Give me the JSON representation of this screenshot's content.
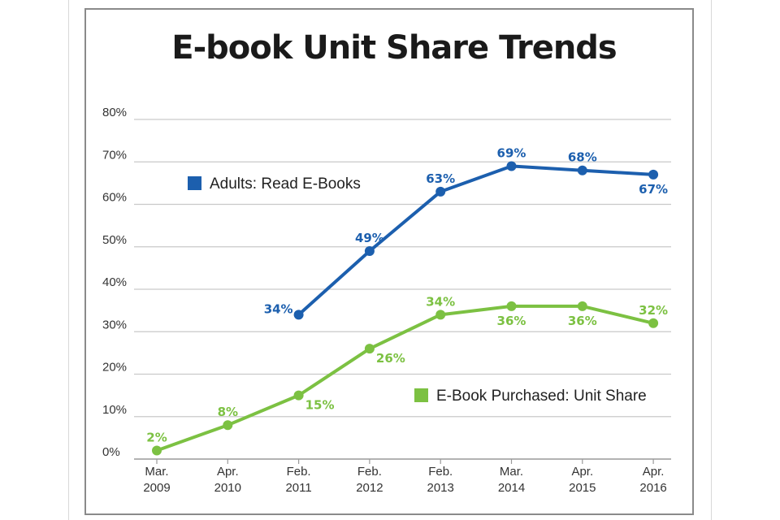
{
  "chart_data": {
    "type": "line",
    "title": "E-book Unit Share Trends",
    "categories": [
      [
        "Mar.",
        "2009"
      ],
      [
        "Apr.",
        "2010"
      ],
      [
        "Feb.",
        "2011"
      ],
      [
        "Feb.",
        "2012"
      ],
      [
        "Feb.",
        "2013"
      ],
      [
        "Mar.",
        "2014"
      ],
      [
        "Apr.",
        "2015"
      ],
      [
        "Apr.",
        "2016"
      ]
    ],
    "y_ticks": [
      "0%",
      "10%",
      "20%",
      "30%",
      "40%",
      "50%",
      "60%",
      "70%",
      "80%"
    ],
    "ylim": [
      0,
      80
    ],
    "grid": true,
    "series": [
      {
        "name": "Adults: Read E-Books",
        "color": "#1c5fae",
        "values": [
          null,
          null,
          34,
          49,
          63,
          69,
          68,
          67
        ],
        "labels": [
          null,
          null,
          "34%",
          "49%",
          "63%",
          "69%",
          "68%",
          "67%"
        ],
        "label_placement": [
          null,
          null,
          "left",
          "above",
          "above",
          "above",
          "above",
          "below"
        ]
      },
      {
        "name": "E-Book Purchased: Unit Share",
        "color": "#7cc142",
        "values": [
          2,
          8,
          15,
          26,
          34,
          36,
          36,
          32
        ],
        "labels": [
          "2%",
          "8%",
          "15%",
          "26%",
          "34%",
          "36%",
          "36%",
          "32%"
        ],
        "label_placement": [
          "above",
          "above",
          "below-right",
          "below-right",
          "above",
          "below",
          "below",
          "above"
        ]
      }
    ]
  }
}
